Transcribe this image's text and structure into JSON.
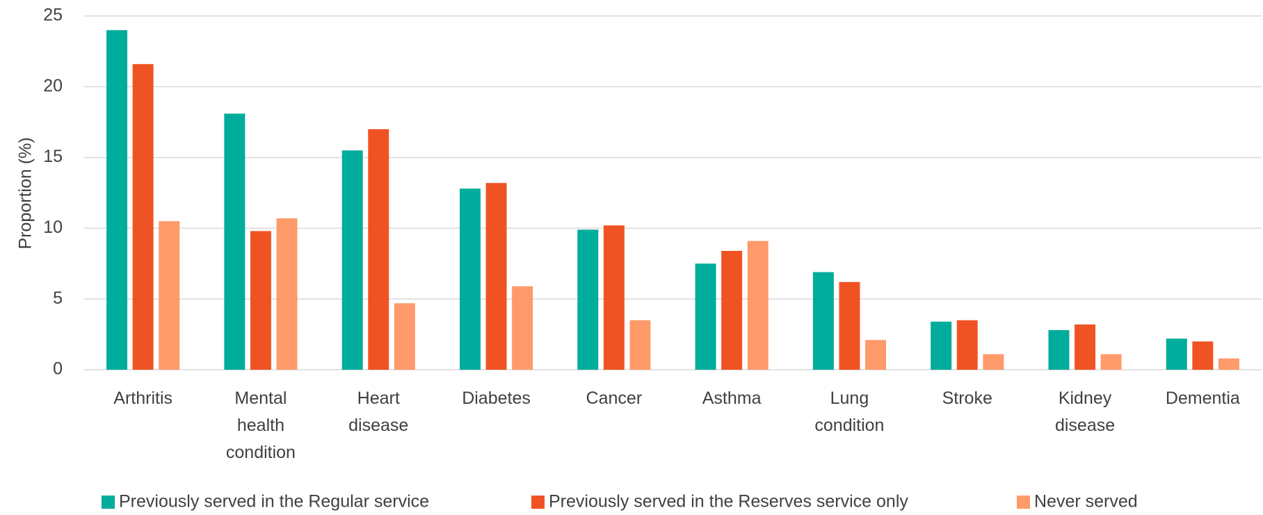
{
  "chart_data": {
    "type": "bar",
    "ylabel": "Proportion (%)",
    "categories": [
      "Arthritis",
      "Mental health condition",
      "Heart disease",
      "Diabetes",
      "Cancer",
      "Asthma",
      "Lung condition",
      "Stroke",
      "Kidney disease",
      "Dementia"
    ],
    "series": [
      {
        "name": "Previously served in the Regular service",
        "color": "#00ac9b",
        "values": [
          24,
          18.1,
          15.5,
          12.8,
          9.9,
          7.5,
          6.9,
          3.4,
          2.8,
          2.2
        ]
      },
      {
        "name": "Previously served in the Reserves service only",
        "color": "#f05323",
        "values": [
          21.6,
          9.8,
          17,
          13.2,
          10.2,
          8.4,
          6.2,
          3.5,
          3.2,
          2.0
        ]
      },
      {
        "name": "Never served",
        "color": "#ff9a6a",
        "values": [
          10.5,
          10.7,
          4.7,
          5.9,
          3.5,
          9.1,
          2.1,
          1.1,
          1.1,
          0.8
        ]
      }
    ],
    "ylim": [
      0,
      25
    ],
    "yticks": [
      0,
      5,
      10,
      15,
      20,
      25
    ],
    "grid": true,
    "legend": "bottom"
  }
}
